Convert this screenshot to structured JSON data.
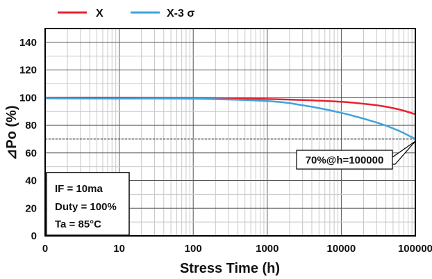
{
  "chart_data": {
    "type": "line",
    "xlabel": "Stress Time (h)",
    "ylabel": "⊿Po (%)",
    "x_scale": "log",
    "xlim": [
      0,
      100000
    ],
    "ylim": [
      0,
      150
    ],
    "x_ticks": [
      "0",
      "10",
      "100",
      "1000",
      "10000",
      "100000"
    ],
    "y_ticks": [
      "0",
      "20",
      "40",
      "60",
      "80",
      "100",
      "120",
      "140"
    ],
    "grid": true,
    "legend_position": "top-left",
    "series": [
      {
        "name": "X",
        "color": "#e8222e",
        "x": [
          1,
          10,
          100,
          1000,
          3000,
          10000,
          30000,
          60000,
          100000
        ],
        "y": [
          100,
          100,
          99.8,
          99,
          98.3,
          97,
          94.5,
          91.5,
          88
        ]
      },
      {
        "name": "X-3 σ",
        "color": "#3fa3dc",
        "x": [
          1,
          10,
          100,
          1000,
          3000,
          10000,
          30000,
          60000,
          100000
        ],
        "y": [
          99.5,
          99.3,
          99.2,
          97.5,
          94.5,
          89,
          82,
          76,
          70
        ]
      }
    ],
    "reference_line": {
      "y": 70
    },
    "annotation": {
      "text": "70%@h=100000",
      "x": 100000,
      "y": 70
    },
    "conditions": [
      "IF = 10ma",
      "Duty = 100%",
      "Ta = 85°C"
    ]
  }
}
